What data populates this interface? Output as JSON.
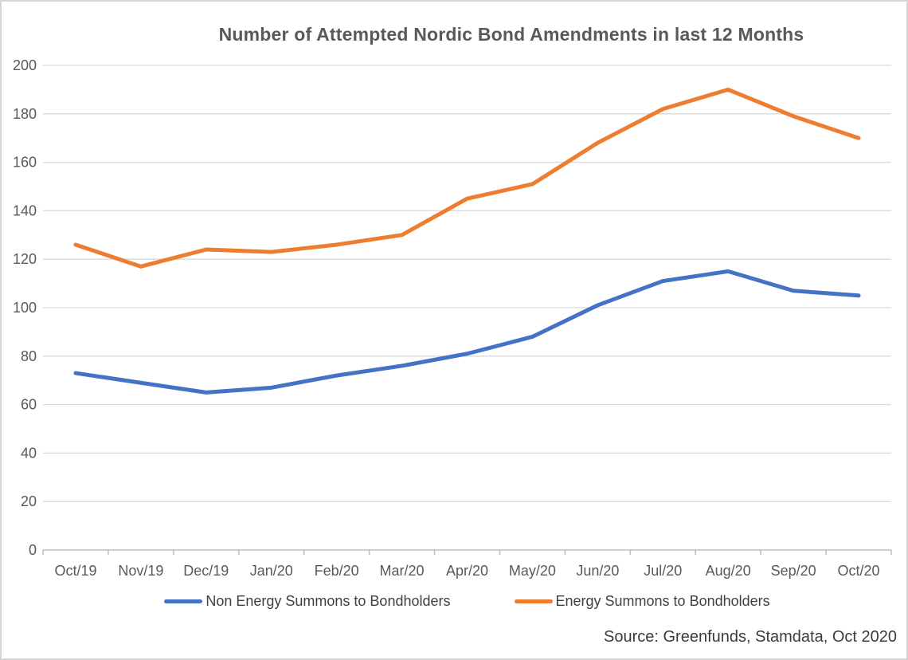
{
  "source_note": "Source: Greenfunds, Stamdata, Oct 2020",
  "chart_data": {
    "type": "line",
    "title": "Number of Attempted Nordic Bond Amendments in last 12 Months",
    "categories": [
      "Oct/19",
      "Nov/19",
      "Dec/19",
      "Jan/20",
      "Feb/20",
      "Mar/20",
      "Apr/20",
      "May/20",
      "Jun/20",
      "Jul/20",
      "Aug/20",
      "Sep/20",
      "Oct/20"
    ],
    "series": [
      {
        "name": "Non Energy Summons to Bondholders",
        "color": "#4472C4",
        "values": [
          73,
          69,
          65,
          67,
          72,
          76,
          81,
          88,
          101,
          111,
          115,
          107,
          105
        ]
      },
      {
        "name": "Energy Summons to Bondholders",
        "color": "#ED7D31",
        "values": [
          126,
          117,
          124,
          123,
          126,
          130,
          145,
          151,
          168,
          182,
          190,
          179,
          170
        ]
      }
    ],
    "xlabel": "",
    "ylabel": "",
    "ylim": [
      0,
      200
    ],
    "ytick_step": 20,
    "grid": true,
    "legend_position": "bottom",
    "gridline_color": "#D9D9D9",
    "axis_line_color": "#BFBFBF",
    "axis_text_color": "#595959",
    "title_color": "#595959"
  }
}
